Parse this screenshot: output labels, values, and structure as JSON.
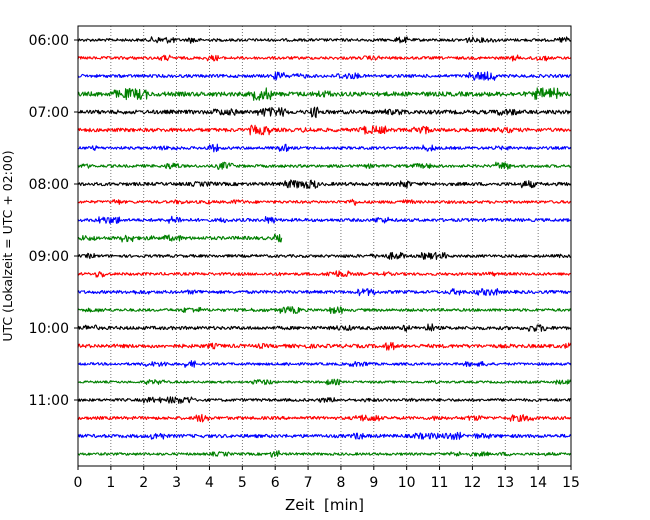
{
  "chart_data": {
    "type": "line",
    "title": "",
    "xlabel": "Zeit  [min]",
    "ylabel": "UTC (Lokalzeit = UTC + 02:00)",
    "xlim": [
      0,
      15
    ],
    "xticks": [
      0,
      1,
      2,
      3,
      4,
      5,
      6,
      7,
      8,
      9,
      10,
      11,
      12,
      13,
      14,
      15
    ],
    "grid": "vertical dotted",
    "line_colors": [
      "#000000",
      "#ff0000",
      "#0000ff",
      "#008000"
    ],
    "hour_tick_labels": [
      "06:00",
      "07:00",
      "08:00",
      "09:00",
      "10:00",
      "11:00"
    ],
    "traces": [
      {
        "start": "06:00",
        "end_min": 15,
        "amplitude": 1.0
      },
      {
        "start": "06:15",
        "end_min": 15,
        "amplitude": 1.0
      },
      {
        "start": "06:30",
        "end_min": 15,
        "amplitude": 1.1
      },
      {
        "start": "06:45",
        "end_min": 15,
        "amplitude": 1.6
      },
      {
        "start": "07:00",
        "end_min": 15,
        "amplitude": 1.4
      },
      {
        "start": "07:15",
        "end_min": 15,
        "amplitude": 1.3
      },
      {
        "start": "07:30",
        "end_min": 15,
        "amplitude": 1.0
      },
      {
        "start": "07:45",
        "end_min": 15,
        "amplitude": 1.0
      },
      {
        "start": "08:00",
        "end_min": 15,
        "amplitude": 1.2
      },
      {
        "start": "08:15",
        "end_min": 15,
        "amplitude": 1.0
      },
      {
        "start": "08:30",
        "end_min": 15,
        "amplitude": 1.1
      },
      {
        "start": "08:45",
        "end_min": 6.2,
        "amplitude": 1.2
      },
      {
        "start": "09:00",
        "end_min": 15,
        "amplitude": 1.0
      },
      {
        "start": "09:15",
        "end_min": 15,
        "amplitude": 1.0
      },
      {
        "start": "09:30",
        "end_min": 15,
        "amplitude": 1.1
      },
      {
        "start": "09:45",
        "end_min": 15,
        "amplitude": 1.0
      },
      {
        "start": "10:00",
        "end_min": 15,
        "amplitude": 1.2
      },
      {
        "start": "10:15",
        "end_min": 15,
        "amplitude": 1.3
      },
      {
        "start": "10:30",
        "end_min": 15,
        "amplitude": 0.9
      },
      {
        "start": "10:45",
        "end_min": 15,
        "amplitude": 0.8
      },
      {
        "start": "11:00",
        "end_min": 15,
        "amplitude": 1.0
      },
      {
        "start": "11:15",
        "end_min": 15,
        "amplitude": 1.1
      },
      {
        "start": "11:30",
        "end_min": 15,
        "amplitude": 1.2
      },
      {
        "start": "11:45",
        "end_min": 15,
        "amplitude": 0.9
      }
    ]
  }
}
